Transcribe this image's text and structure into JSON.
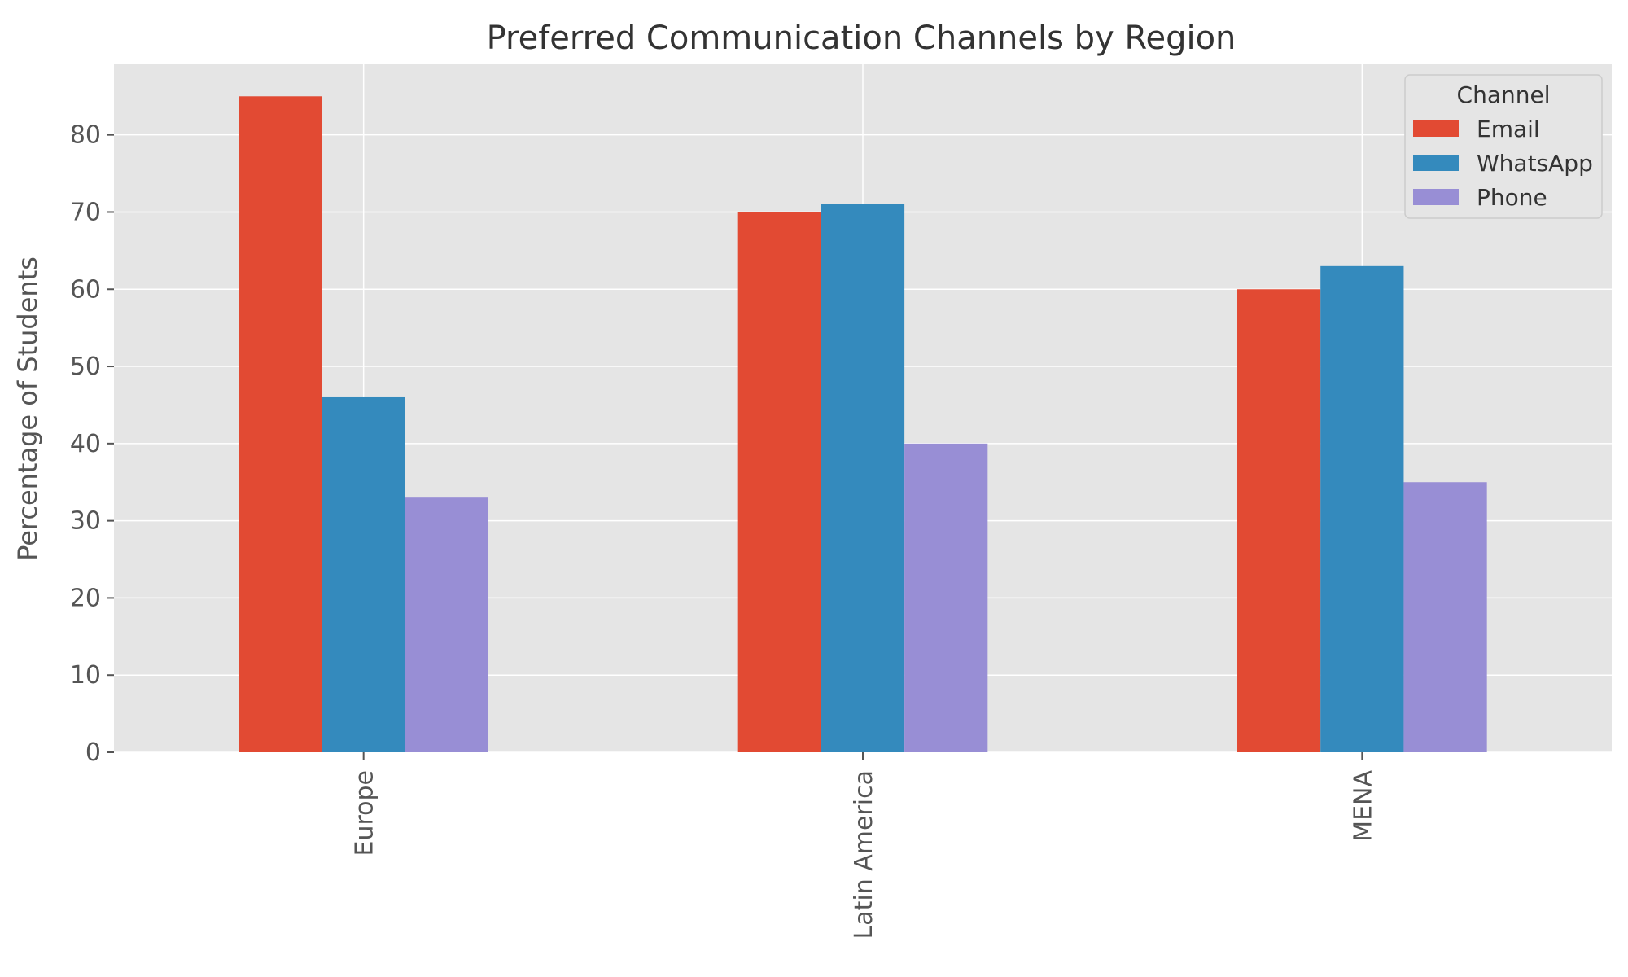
{
  "chart_data": {
    "type": "bar",
    "title": "Preferred Communication Channels by Region",
    "xlabel": "",
    "ylabel": "Percentage of Students",
    "categories": [
      "Europe",
      "Latin America",
      "MENA"
    ],
    "series": [
      {
        "name": "Email",
        "values": [
          85,
          70,
          60
        ],
        "color": "#E24A33"
      },
      {
        "name": "WhatsApp",
        "values": [
          46,
          71,
          63
        ],
        "color": "#348ABD"
      },
      {
        "name": "Phone",
        "values": [
          33,
          40,
          35
        ],
        "color": "#988ED5"
      }
    ],
    "ylim": [
      0,
      89.25
    ],
    "yticks": [
      0,
      10,
      20,
      30,
      40,
      50,
      60,
      70,
      80
    ],
    "grid": true,
    "legend": {
      "title": "Channel",
      "placement": "top-right"
    },
    "background_color": "#E5E5E5",
    "grid_color": "#FFFFFF"
  }
}
